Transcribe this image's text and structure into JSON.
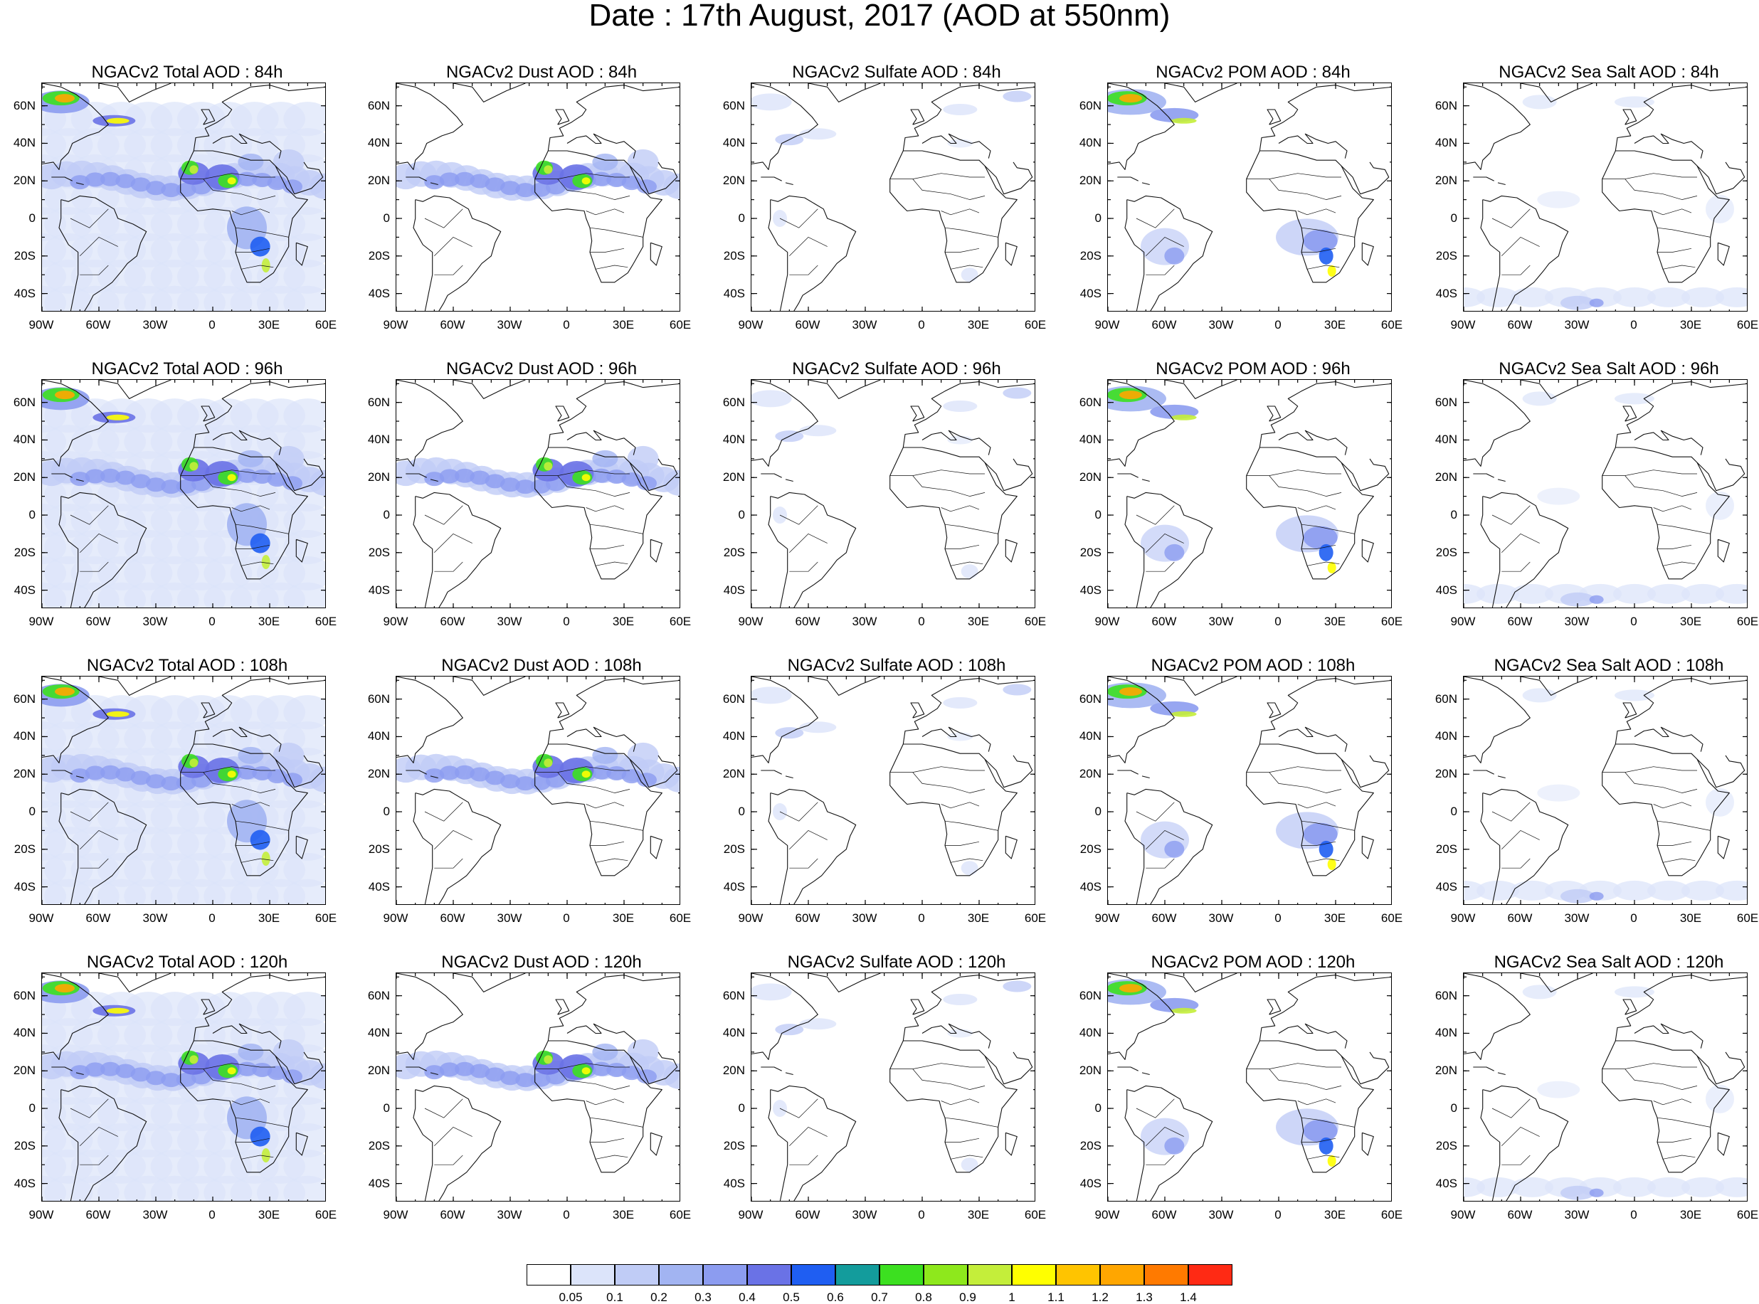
{
  "title": "Date : 17th August, 2017 (AOD at 550nm)",
  "panels": [
    {
      "title": "NGACv2 Total AOD : 84h",
      "species": "total"
    },
    {
      "title": "NGACv2 Dust AOD : 84h",
      "species": "dust"
    },
    {
      "title": "NGACv2 Sulfate AOD : 84h",
      "species": "sulfate"
    },
    {
      "title": "NGACv2 POM AOD : 84h",
      "species": "pom"
    },
    {
      "title": "NGACv2 Sea Salt AOD : 84h",
      "species": "seasalt"
    },
    {
      "title": "NGACv2 Total AOD : 96h",
      "species": "total"
    },
    {
      "title": "NGACv2 Dust AOD : 96h",
      "species": "dust"
    },
    {
      "title": "NGACv2 Sulfate AOD : 96h",
      "species": "sulfate"
    },
    {
      "title": "NGACv2 POM AOD : 96h",
      "species": "pom"
    },
    {
      "title": "NGACv2 Sea Salt AOD : 96h",
      "species": "seasalt"
    },
    {
      "title": "NGACv2 Total AOD : 108h",
      "species": "total"
    },
    {
      "title": "NGACv2 Dust AOD : 108h",
      "species": "dust"
    },
    {
      "title": "NGACv2 Sulfate AOD : 108h",
      "species": "sulfate"
    },
    {
      "title": "NGACv2 POM AOD : 108h",
      "species": "pom"
    },
    {
      "title": "NGACv2 Sea Salt AOD : 108h",
      "species": "seasalt"
    },
    {
      "title": "NGACv2 Total AOD : 120h",
      "species": "total"
    },
    {
      "title": "NGACv2 Dust AOD : 120h",
      "species": "dust"
    },
    {
      "title": "NGACv2 Sulfate AOD : 120h",
      "species": "sulfate"
    },
    {
      "title": "NGACv2 POM AOD : 120h",
      "species": "pom"
    },
    {
      "title": "NGACv2 Sea Salt  AOD : 120h",
      "species": "seasalt"
    }
  ],
  "lat_ticks": [
    "60N",
    "40N",
    "20N",
    "0",
    "20S",
    "40S"
  ],
  "lon_ticks": [
    "90W",
    "60W",
    "30W",
    "0",
    "30E",
    "60E"
  ],
  "colorbar": {
    "labels": [
      "0.05",
      "0.1",
      "0.2",
      "0.3",
      "0.4",
      "0.5",
      "0.6",
      "0.7",
      "0.8",
      "0.9",
      "1",
      "1.1",
      "1.2",
      "1.3",
      "1.4"
    ],
    "colors": [
      "#ffffff",
      "#dce4fa",
      "#c0ccf6",
      "#a2b4f2",
      "#8c9cf0",
      "#6a72e6",
      "#1f5ef2",
      "#139c9c",
      "#3ce020",
      "#8ee81c",
      "#c4ee3a",
      "#ffff00",
      "#ffc400",
      "#ffa600",
      "#ff7a00",
      "#ff2a14"
    ]
  }
}
